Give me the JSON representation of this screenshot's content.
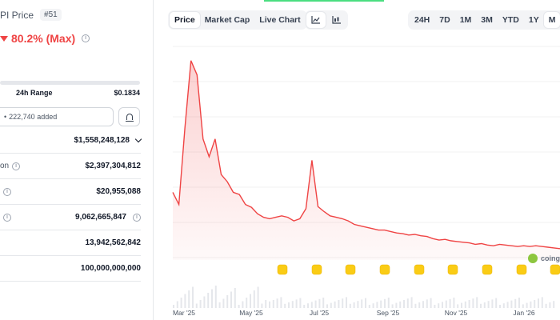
{
  "coin": {
    "price_title": "PI Price",
    "rank": "#51",
    "change": "80.2% (Max)"
  },
  "range": {
    "label": "24h Range",
    "high": "$0.1834"
  },
  "watchlist": {
    "added": "222,740 added"
  },
  "stats": [
    {
      "label": "",
      "value": "$1,558,248,128",
      "dropdown": true,
      "info": false
    },
    {
      "label": "on",
      "value": "$2,397,304,812",
      "dropdown": false,
      "info": false,
      "label_info": true
    },
    {
      "label": "",
      "value": "$20,955,088",
      "dropdown": false,
      "info": false,
      "label_info": true
    },
    {
      "label": "",
      "value": "9,062,665,847",
      "dropdown": false,
      "info": true,
      "label_info": true
    },
    {
      "label": "",
      "value": "13,942,562,842",
      "dropdown": false,
      "info": false
    },
    {
      "label": "",
      "value": "100,000,000,000",
      "dropdown": false,
      "info": false
    }
  ],
  "tabs": [
    "Price",
    "Market Cap",
    "Live Chart"
  ],
  "active_tab": "Price",
  "icons": {
    "line": "line-chart-icon",
    "candle": "candlestick-icon",
    "bell": "bell-icon",
    "info": "info-icon"
  },
  "ranges": [
    "24H",
    "7D",
    "1M",
    "3M",
    "YTD",
    "1Y",
    "M"
  ],
  "active_range": "M",
  "watermark": "coing",
  "colors": {
    "accent": "#ef4444",
    "fill": "#fde2e2",
    "marker": "#facc15"
  },
  "chart_data": {
    "type": "line",
    "x_ticks": [
      "Mar '25",
      "May '25",
      "Jul '25",
      "Sep '25",
      "Nov '25",
      "Jan '26"
    ],
    "series": [
      {
        "values": [
          0.95,
          0.78,
          1.85,
          2.8,
          2.6,
          1.7,
          1.45,
          1.7,
          1.2,
          1.1,
          0.95,
          0.92,
          0.78,
          0.74,
          0.65,
          0.6,
          0.58,
          0.6,
          0.62,
          0.6,
          0.55,
          0.58,
          0.72,
          1.4,
          0.75,
          0.68,
          0.62,
          0.6,
          0.58,
          0.55,
          0.5,
          0.48,
          0.46,
          0.44,
          0.42,
          0.42,
          0.4,
          0.38,
          0.37,
          0.35,
          0.36,
          0.34,
          0.33,
          0.3,
          0.28,
          0.29,
          0.27,
          0.26,
          0.25,
          0.24,
          0.22,
          0.23,
          0.21,
          0.2,
          0.22,
          0.21,
          0.2,
          0.19,
          0.2,
          0.19,
          0.2,
          0.19,
          0.18,
          0.17,
          0.16
        ]
      }
    ],
    "y_range": [
      0,
      3.0
    ],
    "grid": true,
    "legend": "none"
  }
}
